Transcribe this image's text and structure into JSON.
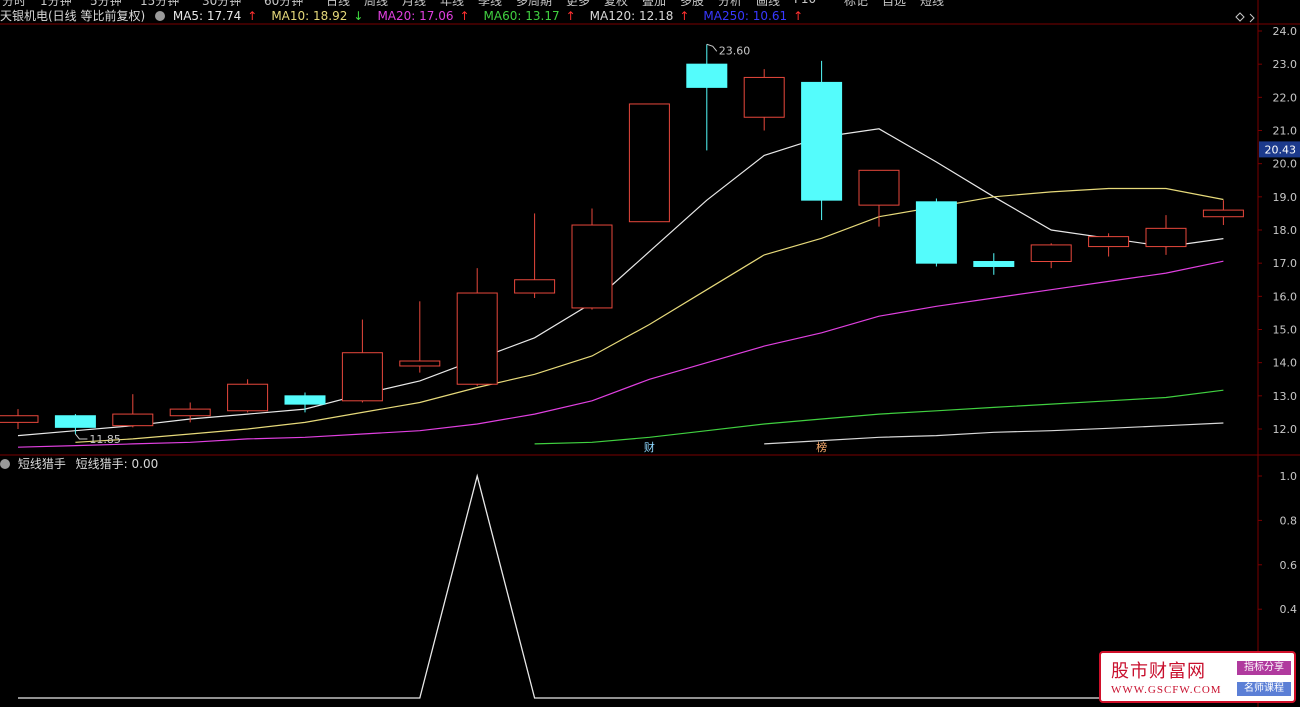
{
  "top_strip": [
    "分时",
    "1分钟",
    "5分钟",
    "15分钟",
    "30分钟",
    "60分钟",
    "日线",
    "周线",
    "月线",
    "年线",
    "季线",
    "多周期",
    "更多",
    "复权",
    "叠加",
    "多股",
    "分析",
    "画线",
    "F10",
    "标记",
    "自选",
    "短线"
  ],
  "main_title": {
    "stock": "天银机电(日线 等比前复权)",
    "indicators": [
      {
        "label": "MA5: 17.74",
        "arrow": "↑",
        "color": "#e8e8e8",
        "arrow_color": "#ff3030"
      },
      {
        "label": "MA10: 18.92",
        "arrow": "↓",
        "color": "#e6d97a",
        "arrow_color": "#40e040"
      },
      {
        "label": "MA20: 17.06",
        "arrow": "↑",
        "color": "#e040e0",
        "arrow_color": "#ff3030"
      },
      {
        "label": "MA60: 13.17",
        "arrow": "↑",
        "color": "#40d040",
        "arrow_color": "#ff3030"
      },
      {
        "label": "MA120: 12.18",
        "arrow": "↑",
        "color": "#d8d8d8",
        "arrow_color": "#ff3030"
      },
      {
        "label": "MA250: 10.61",
        "arrow": "↑",
        "color": "#3838ff",
        "arrow_color": "#ff3030"
      }
    ]
  },
  "sub_title": {
    "name": "短线猎手",
    "value_label": "短线猎手: 0.00"
  },
  "axis": {
    "price_ticks": [
      "24.0",
      "23.0",
      "22.0",
      "21.0",
      "20.0",
      "19.0",
      "18.0",
      "17.0",
      "16.0",
      "15.0",
      "14.0",
      "13.0",
      "12.0"
    ],
    "current_price": "20.43",
    "sub_ticks": [
      "1.0",
      "0.8",
      "0.6",
      "0.4"
    ]
  },
  "annotations": {
    "high": "23.60",
    "low": "11.85",
    "markers": [
      "财",
      "榜"
    ]
  },
  "colors": {
    "up": "#e8483c",
    "down": "#54fcfc",
    "grid": "#7a0000",
    "axis_text": "#c8c8c8",
    "current_price_bg": "#1c3a8c"
  },
  "chart_data": [
    {
      "type": "candlestick",
      "title": "天银机电(日线 等比前复权)",
      "ylim": [
        11.6,
        24.3
      ],
      "candles": [
        {
          "o": 12.2,
          "c": 12.4,
          "h": 12.6,
          "l": 12.0
        },
        {
          "o": 12.4,
          "c": 12.05,
          "h": 12.45,
          "l": 11.85
        },
        {
          "o": 12.1,
          "c": 12.45,
          "h": 13.05,
          "l": 12.05
        },
        {
          "o": 12.4,
          "c": 12.6,
          "h": 12.8,
          "l": 12.2
        },
        {
          "o": 12.55,
          "c": 13.35,
          "h": 13.5,
          "l": 12.5
        },
        {
          "o": 13.0,
          "c": 12.75,
          "h": 13.1,
          "l": 12.5
        },
        {
          "o": 12.85,
          "c": 14.3,
          "h": 15.3,
          "l": 12.8
        },
        {
          "o": 13.9,
          "c": 14.05,
          "h": 15.85,
          "l": 13.7
        },
        {
          "o": 13.35,
          "c": 16.1,
          "h": 16.85,
          "l": 13.3
        },
        {
          "o": 16.1,
          "c": 16.5,
          "h": 18.5,
          "l": 15.95
        },
        {
          "o": 15.65,
          "c": 18.15,
          "h": 18.65,
          "l": 15.6
        },
        {
          "o": 18.25,
          "c": 21.8,
          "h": 21.8,
          "l": 18.25
        },
        {
          "o": 23.0,
          "c": 22.3,
          "h": 23.6,
          "l": 20.4
        },
        {
          "o": 21.4,
          "c": 22.6,
          "h": 22.85,
          "l": 21.0
        },
        {
          "o": 22.45,
          "c": 18.9,
          "h": 23.1,
          "l": 18.3
        },
        {
          "o": 18.75,
          "c": 19.8,
          "h": 19.8,
          "l": 18.1
        },
        {
          "o": 18.85,
          "c": 17.0,
          "h": 18.95,
          "l": 16.9
        },
        {
          "o": 17.05,
          "c": 16.9,
          "h": 17.3,
          "l": 16.65
        },
        {
          "o": 17.05,
          "c": 17.55,
          "h": 17.6,
          "l": 16.85
        },
        {
          "o": 17.5,
          "c": 17.8,
          "h": 17.9,
          "l": 17.2
        },
        {
          "o": 17.5,
          "c": 18.05,
          "h": 18.45,
          "l": 17.25
        },
        {
          "o": 18.4,
          "c": 18.6,
          "h": 18.9,
          "l": 18.15
        }
      ],
      "series": [
        {
          "name": "MA5",
          "color": "#e8e8e8",
          "start": 0,
          "values": [
            11.8,
            11.95,
            12.1,
            12.3,
            12.45,
            12.6,
            13.05,
            13.45,
            14.1,
            14.75,
            15.8,
            17.35,
            18.9,
            20.25,
            20.8,
            21.05,
            20.05,
            19.0,
            18.0,
            17.75,
            17.5,
            17.74
          ]
        },
        {
          "name": "MA10",
          "color": "#e6d97a",
          "start": 1,
          "values": [
            11.6,
            11.7,
            11.85,
            12.0,
            12.2,
            12.5,
            12.8,
            13.25,
            13.65,
            14.2,
            15.15,
            16.2,
            17.25,
            17.75,
            18.4,
            18.7,
            19.0,
            19.15,
            19.25,
            19.25,
            18.92
          ]
        },
        {
          "name": "MA20",
          "color": "#e040e0",
          "start": 0,
          "values": [
            11.45,
            11.5,
            11.55,
            11.6,
            11.7,
            11.75,
            11.85,
            11.95,
            12.15,
            12.45,
            12.85,
            13.5,
            14.0,
            14.5,
            14.9,
            15.4,
            15.7,
            15.95,
            16.2,
            16.45,
            16.7,
            17.06
          ]
        },
        {
          "name": "MA60",
          "color": "#40d040",
          "start": 9,
          "values": [
            11.55,
            11.6,
            11.75,
            11.95,
            12.15,
            12.3,
            12.45,
            12.55,
            12.65,
            12.75,
            12.85,
            12.95,
            13.17
          ]
        },
        {
          "name": "MA120",
          "color": "#d8d8d8",
          "start": 13,
          "values": [
            11.55,
            11.65,
            11.75,
            11.8,
            11.9,
            11.95,
            12.02,
            12.1,
            12.18
          ]
        }
      ]
    },
    {
      "type": "line",
      "title": "短线猎手",
      "ylim": [
        0,
        1.0
      ],
      "series": [
        {
          "name": "短线猎手",
          "color": "#e8e8e8",
          "start": 0,
          "values": [
            0,
            0,
            0,
            0,
            0,
            0,
            0,
            0,
            1,
            0,
            0,
            0,
            0,
            0,
            0,
            0,
            0,
            0,
            0,
            0,
            0,
            0
          ]
        }
      ]
    }
  ]
}
